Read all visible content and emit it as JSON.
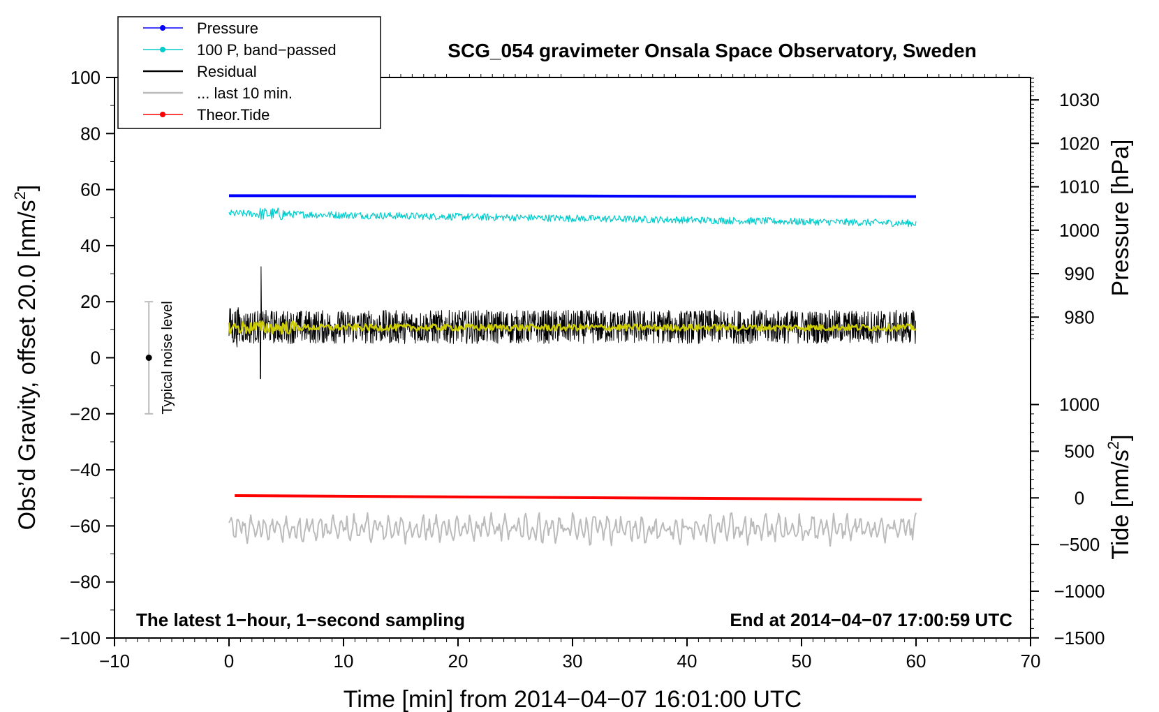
{
  "chart_data": {
    "type": "line",
    "title": "SCG_054 gravimeter Onsala Space Observatory, Sweden",
    "xlabel": "Time [min] from 2014−04−07 16:01:00 UTC",
    "ylabel_left": "Obs’d Gravity, offset 20.0",
    "ylabel_left_unit": "[nm/s",
    "ylabel_left_unit_sup": "2",
    "ylabel_left_unit_close": "]",
    "ylabel_right_top": "Pressure [hPa]",
    "ylabel_right_bottom": "Tide [nm/s",
    "ylabel_right_bottom_sup": "2",
    "ylabel_right_bottom_close": "]",
    "xlim": [
      -10,
      70
    ],
    "ylim_left": [
      -100,
      100
    ],
    "x_ticks": [
      -10,
      0,
      10,
      20,
      30,
      40,
      50,
      60,
      70
    ],
    "x_tick_labels": [
      "−10",
      "0",
      "10",
      "20",
      "30",
      "40",
      "50",
      "60",
      "70"
    ],
    "y_left_ticks": [
      100,
      80,
      60,
      40,
      20,
      0,
      -20,
      -40,
      -60,
      -80,
      -100
    ],
    "y_left_tick_labels": [
      "100",
      "80",
      "60",
      "40",
      "20",
      "0",
      "−20",
      "−40",
      "−60",
      "−80",
      "−100"
    ],
    "pressure_axis": {
      "ticks": [
        1030,
        1020,
        1010,
        1000,
        990,
        980
      ],
      "tick_labels": [
        "1030",
        "1020",
        "1010",
        "1000",
        "990",
        "980"
      ],
      "ref_value": 1030,
      "ref_gravity": 92.0,
      "gravity_per_hPa": 1.55
    },
    "tide_axis": {
      "ticks": [
        1000,
        500,
        0,
        -500,
        -1000,
        -1500
      ],
      "tick_labels": [
        "1000",
        "500",
        "0",
        "−500",
        "−1000",
        "−1500"
      ],
      "ref_value": 0,
      "ref_gravity": -50.0,
      "gravity_per_unit": 0.0333
    },
    "legend": [
      {
        "label": "Pressure",
        "color": "#0000ff",
        "marker": true
      },
      {
        "label": "100 P, band−passed",
        "color": "#00cccc",
        "marker": true
      },
      {
        "label": "Residual",
        "color": "#000000",
        "marker": false
      },
      {
        "label": "... last 10 min.",
        "color": "#bbbbbb",
        "marker": false
      },
      {
        "label": "Theor.Tide",
        "color": "#ff0000",
        "marker": true
      }
    ],
    "series": [
      {
        "name": "Pressure",
        "color": "#0000ff",
        "x": [
          0,
          10,
          20,
          30,
          40,
          50,
          60
        ],
        "y": [
          57.8,
          57.8,
          57.8,
          57.7,
          57.6,
          57.6,
          57.5
        ]
      },
      {
        "name": "100 P, band−passed",
        "color": "#00cccc",
        "x_start": 0,
        "x_end": 60,
        "mean_start": 51.5,
        "mean_end": 48.0,
        "amplitude": 1.6
      },
      {
        "name": "Residual",
        "color": "#000000",
        "x_start": 0,
        "x_end": 60,
        "mean": 11.0,
        "amplitude": 6.0,
        "extremes": {
          "max": 32.5,
          "min": -7.5
        }
      },
      {
        "name": "Residual (smoothed)",
        "color": "#cccc00",
        "x_start": 0,
        "x_end": 60,
        "mean": 10.8,
        "amplitude": 1.2
      },
      {
        "name": "... last 10 min.",
        "color": "#bbbbbb",
        "x_start": 0,
        "x_end": 60,
        "mean": -61.0,
        "amplitude": 5.0
      },
      {
        "name": "Theor.Tide",
        "color": "#ff0000",
        "x": [
          0.5,
          60.5
        ],
        "y": [
          -49.2,
          -50.6
        ]
      }
    ],
    "noise_bar": {
      "x": -7,
      "center": 0,
      "low": -20,
      "high": 20,
      "label": "Typical noise level"
    },
    "annotations": {
      "bottom_left": "The latest 1−hour, 1−second sampling",
      "bottom_right": "End at 2014−04−07 17:00:59 UTC"
    }
  }
}
